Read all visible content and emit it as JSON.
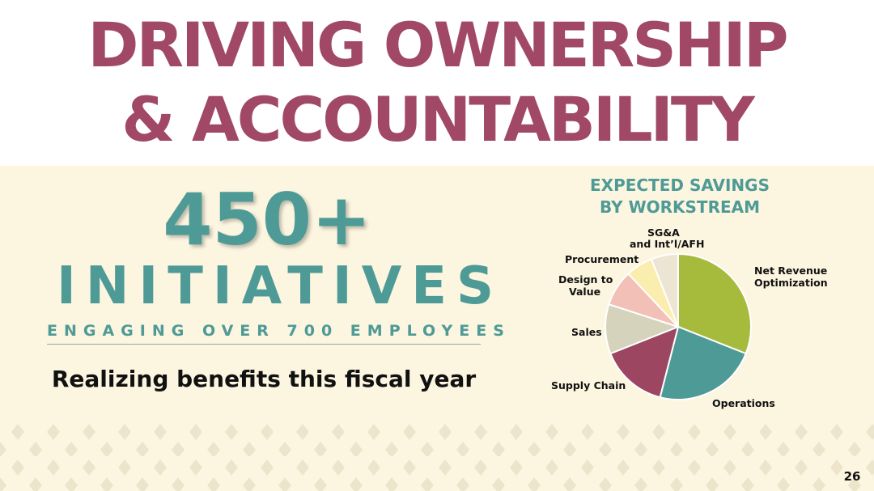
{
  "slide": {
    "title_line1": "DRIVING OWNERSHIP",
    "title_line2": "& ACCOUNTABILITY",
    "big_number": "450+",
    "big_word": "INITIATIVES",
    "engaging": "ENGAGING OVER 700 EMPLOYEES",
    "realizing": "Realizing benefits this fiscal year",
    "page_number": "26"
  },
  "chart_data": {
    "type": "pie",
    "title_line1": "EXPECTED SAVINGS",
    "title_line2": "BY WORKSTREAM",
    "slices": [
      {
        "name": "Net Revenue Optimization",
        "value": 31,
        "color": "#a6bb3c"
      },
      {
        "name": "Operations",
        "value": 23,
        "color": "#4e9a96"
      },
      {
        "name": "Supply Chain",
        "value": 15,
        "color": "#9c4662"
      },
      {
        "name": "Sales",
        "value": 11,
        "color": "#d6d3bd"
      },
      {
        "name": "Design to Value",
        "value": 8,
        "color": "#f2c0b6"
      },
      {
        "name": "Procurement",
        "value": 6,
        "color": "#fbedae"
      },
      {
        "name": "SG&A and Int'l/AFH",
        "value": 6,
        "color": "#ede5d3"
      }
    ],
    "labels": {
      "nro_1": "Net Revenue",
      "nro_2": "Optimization",
      "ops": "Operations",
      "supply": "Supply Chain",
      "sales": "Sales",
      "dtv_1": "Design to",
      "dtv_2": "Value",
      "proc": "Procurement",
      "sga_1": "SG&A",
      "sga_2": "and Int’l/AFH"
    }
  }
}
